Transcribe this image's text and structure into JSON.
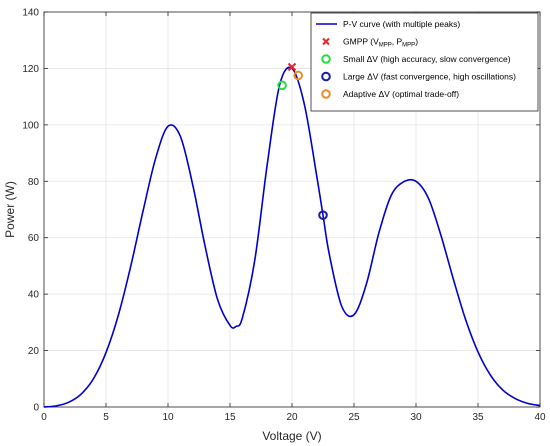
{
  "chart_data": {
    "type": "line",
    "xlabel": "Voltage (V)",
    "ylabel": "Power (W)",
    "xlim": [
      0,
      40
    ],
    "ylim": [
      0,
      140
    ],
    "x_ticks": [
      0,
      5,
      10,
      15,
      20,
      25,
      30,
      35,
      40
    ],
    "y_ticks": [
      0,
      20,
      40,
      60,
      80,
      100,
      120,
      140
    ],
    "grid": true,
    "legend_position": "top-right",
    "series": [
      {
        "name": "P-V curve (with multiple peaks)",
        "type": "line",
        "color": "#0000cc",
        "x": [
          0,
          1,
          2,
          3,
          4,
          5,
          6,
          7,
          8,
          9,
          10,
          11,
          12,
          13,
          14,
          15,
          15.5,
          16,
          17,
          18,
          19,
          20,
          21,
          22,
          22.5,
          23,
          24,
          25,
          26,
          27,
          28,
          29,
          30,
          31,
          32,
          33,
          34,
          35,
          36,
          37,
          38,
          39,
          40
        ],
        "y": [
          0,
          0.4,
          1.7,
          4.6,
          10.1,
          19.3,
          32.6,
          50.0,
          69.7,
          88.1,
          99.5,
          95.9,
          78.6,
          56.8,
          38.1,
          28.9,
          28.6,
          31.6,
          52.1,
          85.9,
          114.1,
          120.0,
          107.2,
          81.7,
          68.0,
          54.3,
          35.8,
          32.7,
          43.6,
          61.6,
          75.0,
          79.8,
          80.0,
          74.0,
          61.0,
          45.5,
          31.0,
          19.5,
          11.3,
          6.0,
          3.0,
          1.3,
          0.5
        ]
      }
    ],
    "markers": [
      {
        "name": "GMPP (V_MPP, P_MPP)",
        "symbol": "x",
        "color": "#e8262d",
        "x": 20.0,
        "y": 120.5
      },
      {
        "name": "Small ΔV (high accuracy, slow convergence)",
        "symbol": "o",
        "color": "#1fe03a",
        "x": 19.2,
        "y": 114.0
      },
      {
        "name": "Large ΔV (fast convergence, high oscillations)",
        "symbol": "o",
        "color": "#1a1aa8",
        "x": 22.5,
        "y": 68.0
      },
      {
        "name": "Adaptive ΔV (optimal trade-off)",
        "symbol": "o",
        "color": "#f08a1e",
        "x": 20.5,
        "y": 117.5
      }
    ],
    "legend": {
      "entries": [
        {
          "pre": "P-V curve (with multiple peaks)",
          "sub1": "",
          "mid": "",
          "sub2": "",
          "post": ""
        },
        {
          "pre": "GMPP (V",
          "sub1": "MPP",
          "mid": ", P",
          "sub2": "MPP",
          "post": ")"
        },
        {
          "pre": "Small ΔV (high accuracy, slow convergence)",
          "sub1": "",
          "mid": "",
          "sub2": "",
          "post": ""
        },
        {
          "pre": "Large ΔV (fast convergence, high oscillations)",
          "sub1": "",
          "mid": "",
          "sub2": "",
          "post": ""
        },
        {
          "pre": "Adaptive ΔV (optimal trade-off)",
          "sub1": "",
          "mid": "",
          "sub2": "",
          "post": ""
        }
      ]
    }
  }
}
